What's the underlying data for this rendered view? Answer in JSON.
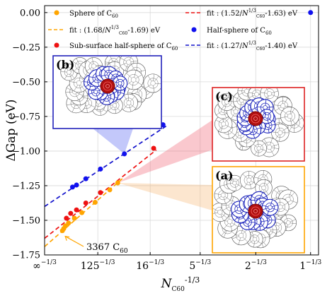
{
  "chart_data": {
    "type": "scatter",
    "title": "",
    "xlabel": "N_C60^-1/3",
    "ylabel": "ΔGap (eV)",
    "x_scale": "N^(-1/3)",
    "xlim": [
      0,
      1.03
    ],
    "ylim": [
      -1.75,
      0.05
    ],
    "xticks": [
      {
        "n_label": "∞",
        "value": 0
      },
      {
        "n_label": "125",
        "value": 0.2
      },
      {
        "n_label": "16",
        "value": 0.397
      },
      {
        "n_label": "5",
        "value": 0.585
      },
      {
        "n_label": "2",
        "value": 0.794
      },
      {
        "n_label": "1",
        "value": 1.0
      }
    ],
    "yticks": [
      "0.00",
      "-0.25",
      "-0.50",
      "-0.75",
      "-1.00",
      "-1.25",
      "-1.50",
      "-1.75"
    ],
    "grid": true,
    "legend_position": "top",
    "series": [
      {
        "name": "Sphere of C60",
        "color": "#ffa500",
        "marker": "circle",
        "points": [
          {
            "x": 0.067,
            "y": -1.575
          },
          {
            "x": 0.072,
            "y": -1.56
          },
          {
            "x": 0.078,
            "y": -1.54
          },
          {
            "x": 0.09,
            "y": -1.52
          },
          {
            "x": 0.112,
            "y": -1.485
          },
          {
            "x": 0.14,
            "y": -1.445
          },
          {
            "x": 0.19,
            "y": -1.37
          },
          {
            "x": 0.245,
            "y": -1.28
          },
          {
            "x": 0.275,
            "y": -1.23
          }
        ]
      },
      {
        "name": "Sub-surface half-sphere of C60",
        "color": "#ee1111",
        "marker": "circle",
        "points": [
          {
            "x": 0.082,
            "y": -1.485
          },
          {
            "x": 0.098,
            "y": -1.45
          },
          {
            "x": 0.12,
            "y": -1.425
          },
          {
            "x": 0.155,
            "y": -1.375
          },
          {
            "x": 0.21,
            "y": -1.3
          },
          {
            "x": 0.41,
            "y": -0.98
          }
        ]
      },
      {
        "name": "Half-sphere of C60",
        "color": "#1111ee",
        "marker": "circle",
        "points": [
          {
            "x": 0.105,
            "y": -1.26
          },
          {
            "x": 0.12,
            "y": -1.245
          },
          {
            "x": 0.155,
            "y": -1.2
          },
          {
            "x": 0.21,
            "y": -1.13
          },
          {
            "x": 0.3,
            "y": -1.02
          },
          {
            "x": 0.445,
            "y": -0.81
          },
          {
            "x": 1.0,
            "y": 0.0
          }
        ]
      }
    ],
    "fits": [
      {
        "name": "fit : (1.68/N_C60^1/3-1.69) eV",
        "color": "#ffa500",
        "slope": 1.68,
        "intercept": -1.69,
        "x_end": 0.3
      },
      {
        "name": "fit : (1.52/N_C60^1/3-1.63) eV",
        "color": "#ee1111",
        "slope": 1.52,
        "intercept": -1.63,
        "x_end": 0.42
      },
      {
        "name": "fit : (1.27/N_C60^1/3-1.40) eV",
        "color": "#1111cc",
        "slope": 1.27,
        "intercept": -1.4,
        "x_end": 0.46
      }
    ],
    "annotations": [
      {
        "text": "3367 C60",
        "point": {
          "x": 0.067,
          "y": -1.575
        }
      }
    ],
    "insets": [
      {
        "label": "(b)",
        "border_color": "#2222bb",
        "linked_point": {
          "x": 0.3,
          "y": -1.02
        },
        "wedge_color": "#4455ee"
      },
      {
        "label": "(c)",
        "border_color": "#dd2222",
        "linked_point": {
          "x": 0.275,
          "y": -1.23
        },
        "wedge_color": "#ee5566"
      },
      {
        "label": "(a)",
        "border_color": "#ffa500",
        "linked_point": {
          "x": 0.275,
          "y": -1.23
        },
        "wedge_color": "#f6b26b"
      }
    ]
  }
}
